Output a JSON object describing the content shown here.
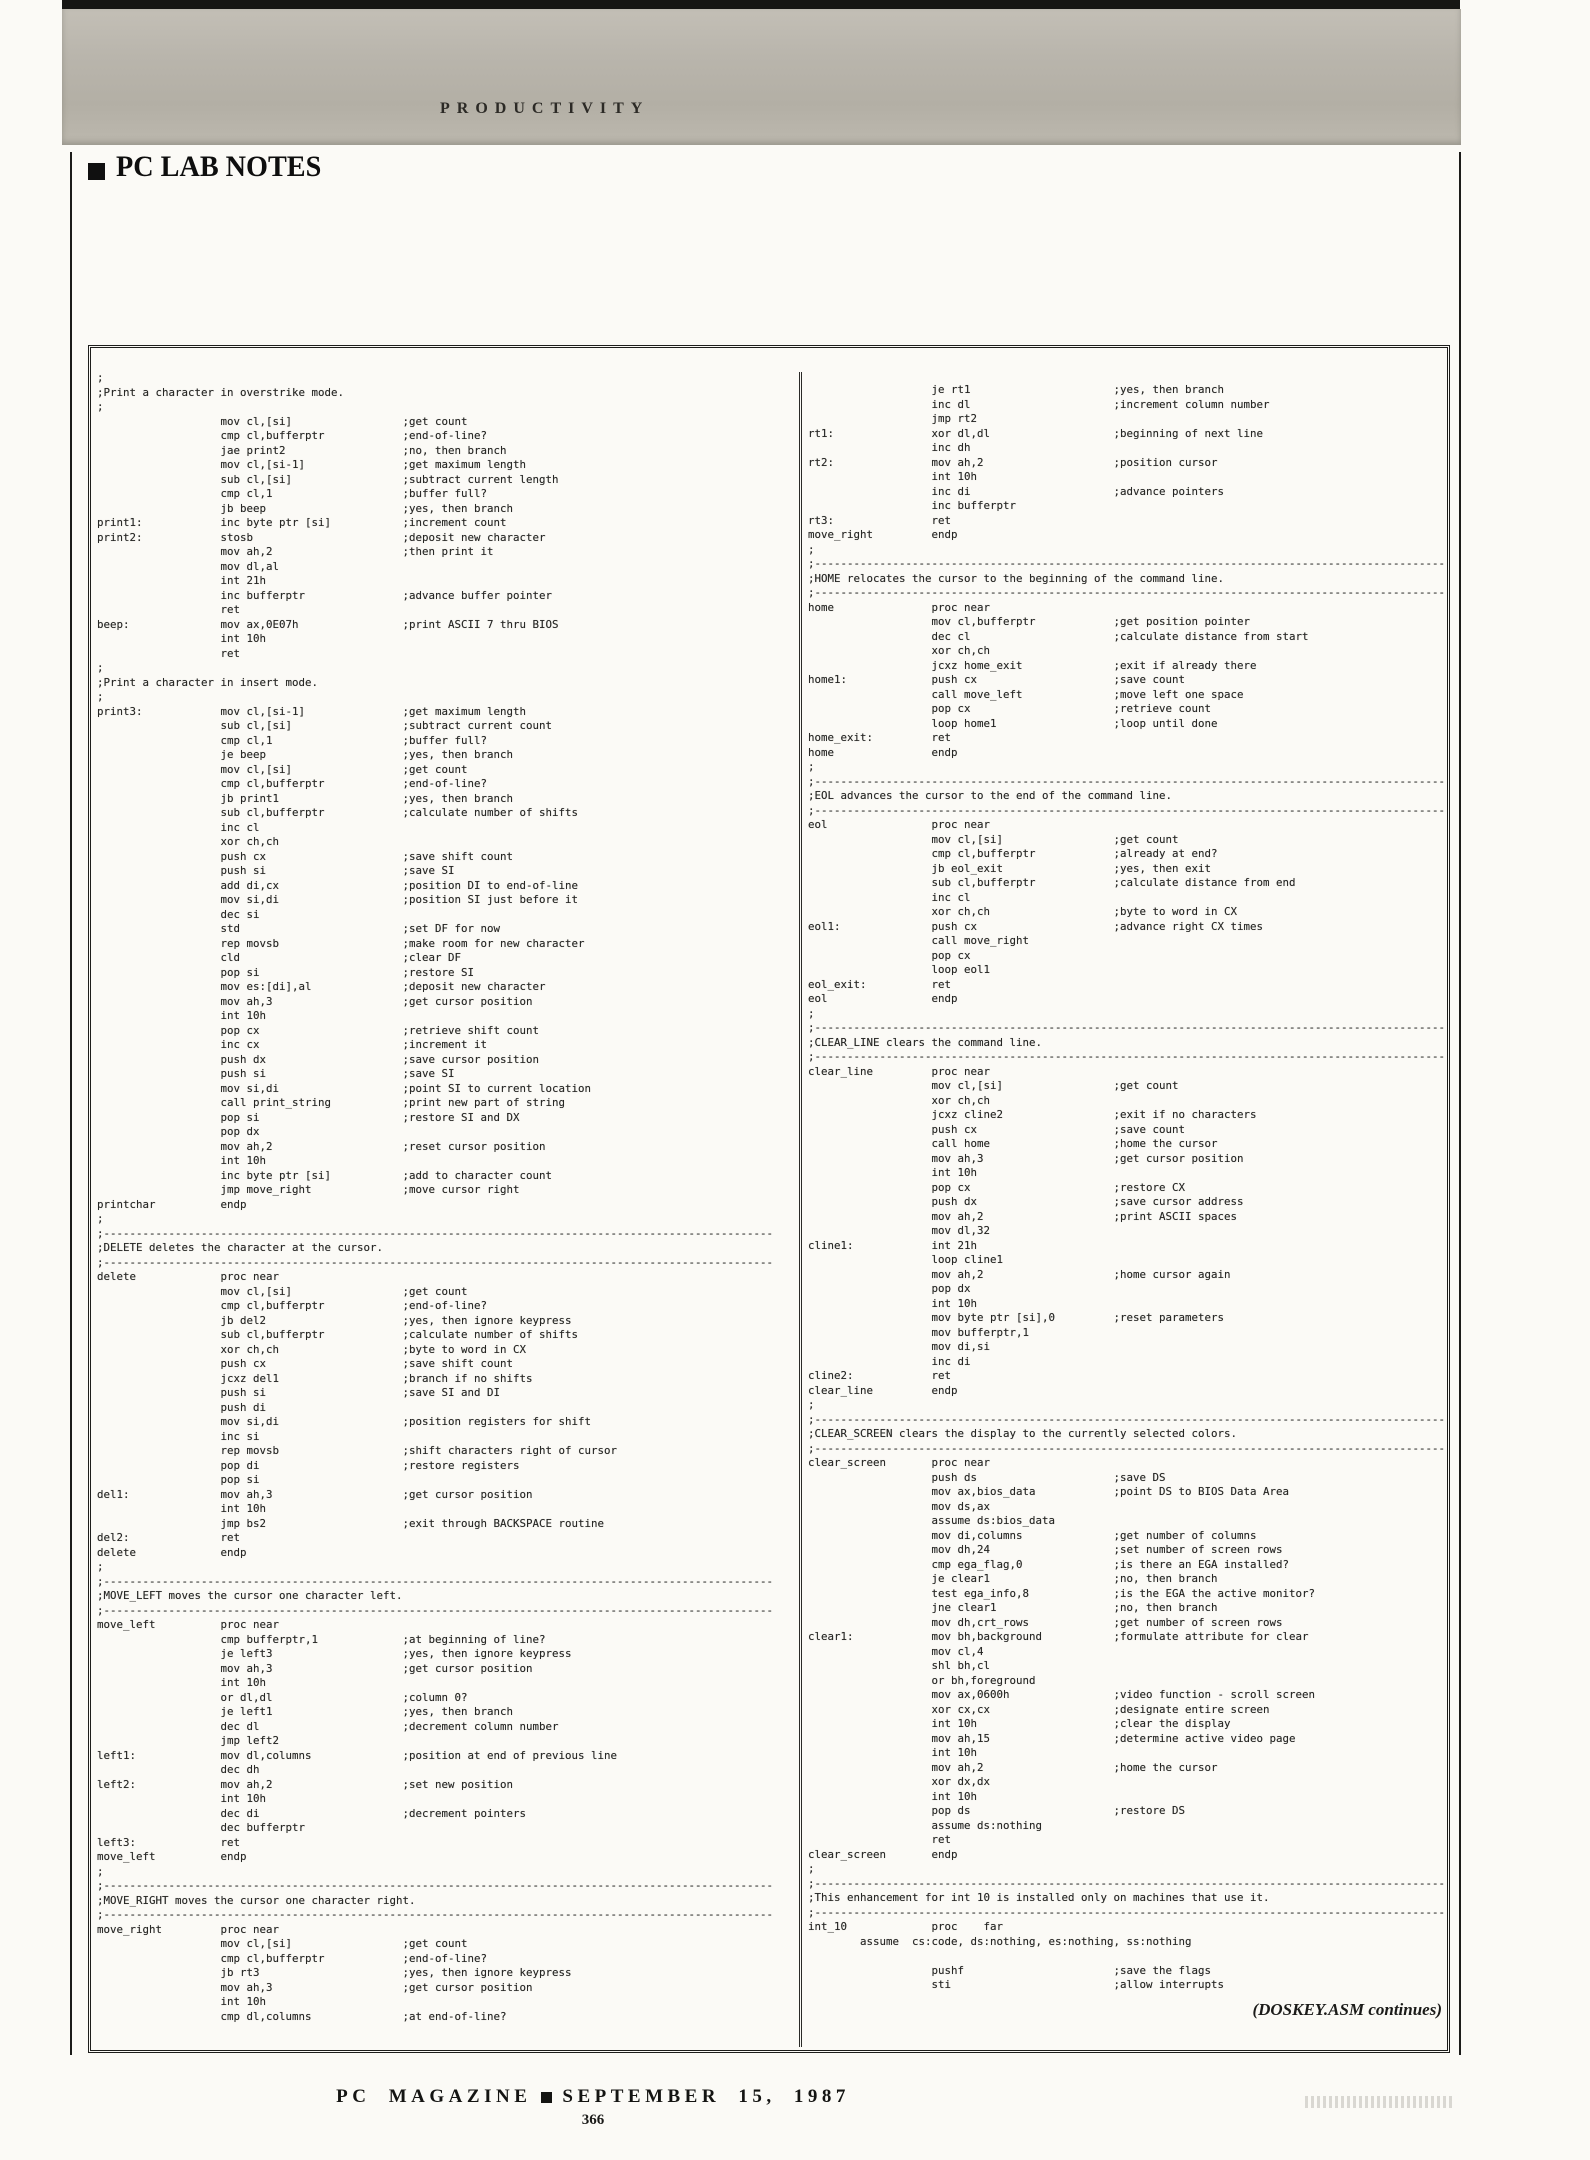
{
  "header": {
    "category_label": "PRODUCTIVITY",
    "section_title": "PC LAB NOTES"
  },
  "listing": {
    "left_lines": [
      ";",
      ";Print a character in overstrike mode.",
      ";",
      [
        "",
        "mov cl,[si]",
        ";get count"
      ],
      [
        "",
        "cmp cl,bufferptr",
        ";end-of-line?"
      ],
      [
        "",
        "jae print2",
        ";no, then branch"
      ],
      [
        "",
        "mov cl,[si-1]",
        ";get maximum length"
      ],
      [
        "",
        "sub cl,[si]",
        ";subtract current length"
      ],
      [
        "",
        "cmp cl,1",
        ";buffer full?"
      ],
      [
        "",
        "jb beep",
        ";yes, then branch"
      ],
      [
        "print1:",
        "inc byte ptr [si]",
        ";increment count"
      ],
      [
        "print2:",
        "stosb",
        ";deposit new character"
      ],
      [
        "",
        "mov ah,2",
        ";then print it"
      ],
      [
        "",
        "mov dl,al",
        ""
      ],
      [
        "",
        "int 21h",
        ""
      ],
      [
        "",
        "inc bufferptr",
        ";advance buffer pointer"
      ],
      [
        "",
        "ret",
        ""
      ],
      [
        "beep:",
        "mov ax,0E07h",
        ";print ASCII 7 thru BIOS"
      ],
      [
        "",
        "int 10h",
        ""
      ],
      [
        "",
        "ret",
        ""
      ],
      ";",
      ";Print a character in insert mode.",
      ";",
      [
        "print3:",
        "mov cl,[si-1]",
        ";get maximum length"
      ],
      [
        "",
        "sub cl,[si]",
        ";subtract current count"
      ],
      [
        "",
        "cmp cl,1",
        ";buffer full?"
      ],
      [
        "",
        "je beep",
        ";yes, then branch"
      ],
      [
        "",
        "mov cl,[si]",
        ";get count"
      ],
      [
        "",
        "cmp cl,bufferptr",
        ";end-of-line?"
      ],
      [
        "",
        "jb print1",
        ";yes, then branch"
      ],
      [
        "",
        "sub cl,bufferptr",
        ";calculate number of shifts"
      ],
      [
        "",
        "inc cl",
        ""
      ],
      [
        "",
        "xor ch,ch",
        ""
      ],
      [
        "",
        "push cx",
        ";save shift count"
      ],
      [
        "",
        "push si",
        ";save SI"
      ],
      [
        "",
        "add di,cx",
        ";position DI to end-of-line"
      ],
      [
        "",
        "mov si,di",
        ";position SI just before it"
      ],
      [
        "",
        "dec si",
        ""
      ],
      [
        "",
        "std",
        ";set DF for now"
      ],
      [
        "",
        "rep movsb",
        ";make room for new character"
      ],
      [
        "",
        "cld",
        ";clear DF"
      ],
      [
        "",
        "pop si",
        ";restore SI"
      ],
      [
        "",
        "mov es:[di],al",
        ";deposit new character"
      ],
      [
        "",
        "mov ah,3",
        ";get cursor position"
      ],
      [
        "",
        "int 10h",
        ""
      ],
      [
        "",
        "pop cx",
        ";retrieve shift count"
      ],
      [
        "",
        "inc cx",
        ";increment it"
      ],
      [
        "",
        "push dx",
        ";save cursor position"
      ],
      [
        "",
        "push si",
        ";save SI"
      ],
      [
        "",
        "mov si,di",
        ";point SI to current location"
      ],
      [
        "",
        "call print_string",
        ";print new part of string"
      ],
      [
        "",
        "pop si",
        ";restore SI and DX"
      ],
      [
        "",
        "pop dx",
        ""
      ],
      [
        "",
        "mov ah,2",
        ";reset cursor position"
      ],
      [
        "",
        "int 10h",
        ""
      ],
      [
        "",
        "inc byte ptr [si]",
        ";add to character count"
      ],
      [
        "",
        "jmp move_right",
        ";move cursor right"
      ],
      [
        "printchar",
        "endp",
        ""
      ],
      ";",
      ";-------------------------------------------------------------------------------------------------------",
      ";DELETE deletes the character at the cursor.",
      ";-------------------------------------------------------------------------------------------------------",
      [
        "delete",
        "proc near",
        ""
      ],
      [
        "",
        "mov cl,[si]",
        ";get count"
      ],
      [
        "",
        "cmp cl,bufferptr",
        ";end-of-line?"
      ],
      [
        "",
        "jb del2",
        ";yes, then ignore keypress"
      ],
      [
        "",
        "sub cl,bufferptr",
        ";calculate number of shifts"
      ],
      [
        "",
        "xor ch,ch",
        ";byte to word in CX"
      ],
      [
        "",
        "push cx",
        ";save shift count"
      ],
      [
        "",
        "jcxz del1",
        ";branch if no shifts"
      ],
      [
        "",
        "push si",
        ";save SI and DI"
      ],
      [
        "",
        "push di",
        ""
      ],
      [
        "",
        "mov si,di",
        ";position registers for shift"
      ],
      [
        "",
        "inc si",
        ""
      ],
      [
        "",
        "rep movsb",
        ";shift characters right of cursor"
      ],
      [
        "",
        "pop di",
        ";restore registers"
      ],
      [
        "",
        "pop si",
        ""
      ],
      [
        "del1:",
        "mov ah,3",
        ";get cursor position"
      ],
      [
        "",
        "int 10h",
        ""
      ],
      [
        "",
        "jmp bs2",
        ";exit through BACKSPACE routine"
      ],
      [
        "del2:",
        "ret",
        ""
      ],
      [
        "delete",
        "endp",
        ""
      ],
      ";",
      ";-------------------------------------------------------------------------------------------------------",
      ";MOVE_LEFT moves the cursor one character left.",
      ";-------------------------------------------------------------------------------------------------------",
      [
        "move_left",
        "proc near",
        ""
      ],
      [
        "",
        "cmp bufferptr,1",
        ";at beginning of line?"
      ],
      [
        "",
        "je left3",
        ";yes, then ignore keypress"
      ],
      [
        "",
        "mov ah,3",
        ";get cursor position"
      ],
      [
        "",
        "int 10h",
        ""
      ],
      [
        "",
        "or dl,dl",
        ";column 0?"
      ],
      [
        "",
        "je left1",
        ";yes, then branch"
      ],
      [
        "",
        "dec dl",
        ";decrement column number"
      ],
      [
        "",
        "jmp left2",
        ""
      ],
      [
        "left1:",
        "mov dl,columns",
        ";position at end of previous line"
      ],
      [
        "",
        "dec dh",
        ""
      ],
      [
        "left2:",
        "mov ah,2",
        ";set new position"
      ],
      [
        "",
        "int 10h",
        ""
      ],
      [
        "",
        "dec di",
        ";decrement pointers"
      ],
      [
        "",
        "dec bufferptr",
        ""
      ],
      [
        "left3:",
        "ret",
        ""
      ],
      [
        "move_left",
        "endp",
        ""
      ],
      ";",
      ";-------------------------------------------------------------------------------------------------------",
      ";MOVE_RIGHT moves the cursor one character right.",
      ";-------------------------------------------------------------------------------------------------------",
      [
        "move_right",
        "proc near",
        ""
      ],
      [
        "",
        "mov cl,[si]",
        ";get count"
      ],
      [
        "",
        "cmp cl,bufferptr",
        ";end-of-line?"
      ],
      [
        "",
        "jb rt3",
        ";yes, then ignore keypress"
      ],
      [
        "",
        "mov ah,3",
        ";get cursor position"
      ],
      [
        "",
        "int 10h",
        ""
      ],
      [
        "",
        "cmp dl,columns",
        ";at end-of-line?"
      ]
    ],
    "right_lines": [
      [
        "",
        "je rt1",
        ";yes, then branch"
      ],
      [
        "",
        "inc dl",
        ";increment column number"
      ],
      [
        "",
        "jmp rt2",
        ""
      ],
      [
        "rt1:",
        "xor dl,dl",
        ";beginning of next line"
      ],
      [
        "",
        "inc dh",
        ""
      ],
      [
        "rt2:",
        "mov ah,2",
        ";position cursor"
      ],
      [
        "",
        "int 10h",
        ""
      ],
      [
        "",
        "inc di",
        ";advance pointers"
      ],
      [
        "",
        "inc bufferptr",
        ""
      ],
      [
        "rt3:",
        "ret",
        ""
      ],
      [
        "move_right",
        "endp",
        ""
      ],
      ";",
      ";-------------------------------------------------------------------------------------------------",
      ";HOME relocates the cursor to the beginning of the command line.",
      ";-------------------------------------------------------------------------------------------------",
      [
        "home",
        "proc near",
        ""
      ],
      [
        "",
        "mov cl,bufferptr",
        ";get position pointer"
      ],
      [
        "",
        "dec cl",
        ";calculate distance from start"
      ],
      [
        "",
        "xor ch,ch",
        ""
      ],
      [
        "",
        "jcxz home_exit",
        ";exit if already there"
      ],
      [
        "home1:",
        "push cx",
        ";save count"
      ],
      [
        "",
        "call move_left",
        ";move left one space"
      ],
      [
        "",
        "pop cx",
        ";retrieve count"
      ],
      [
        "",
        "loop home1",
        ";loop until done"
      ],
      [
        "home_exit:",
        "ret",
        ""
      ],
      [
        "home",
        "endp",
        ""
      ],
      ";",
      ";-------------------------------------------------------------------------------------------------",
      ";EOL advances the cursor to the end of the command line.",
      ";-------------------------------------------------------------------------------------------------",
      [
        "eol",
        "proc near",
        ""
      ],
      [
        "",
        "mov cl,[si]",
        ";get count"
      ],
      [
        "",
        "cmp cl,bufferptr",
        ";already at end?"
      ],
      [
        "",
        "jb eol_exit",
        ";yes, then exit"
      ],
      [
        "",
        "sub cl,bufferptr",
        ";calculate distance from end"
      ],
      [
        "",
        "inc cl",
        ""
      ],
      [
        "",
        "xor ch,ch",
        ";byte to word in CX"
      ],
      [
        "eol1:",
        "push cx",
        ";advance right CX times"
      ],
      [
        "",
        "call move_right",
        ""
      ],
      [
        "",
        "pop cx",
        ""
      ],
      [
        "",
        "loop eol1",
        ""
      ],
      [
        "eol_exit:",
        "ret",
        ""
      ],
      [
        "eol",
        "endp",
        ""
      ],
      ";",
      ";-------------------------------------------------------------------------------------------------",
      ";CLEAR_LINE clears the command line.",
      ";-------------------------------------------------------------------------------------------------",
      [
        "clear_line",
        "proc near",
        ""
      ],
      [
        "",
        "mov cl,[si]",
        ";get count"
      ],
      [
        "",
        "xor ch,ch",
        ""
      ],
      [
        "",
        "jcxz cline2",
        ";exit if no characters"
      ],
      [
        "",
        "push cx",
        ";save count"
      ],
      [
        "",
        "call home",
        ";home the cursor"
      ],
      [
        "",
        "mov ah,3",
        ";get cursor position"
      ],
      [
        "",
        "int 10h",
        ""
      ],
      [
        "",
        "pop cx",
        ";restore CX"
      ],
      [
        "",
        "push dx",
        ";save cursor address"
      ],
      [
        "",
        "mov ah,2",
        ";print ASCII spaces"
      ],
      [
        "",
        "mov dl,32",
        ""
      ],
      [
        "cline1:",
        "int 21h",
        ""
      ],
      [
        "",
        "loop cline1",
        ""
      ],
      [
        "",
        "mov ah,2",
        ";home cursor again"
      ],
      [
        "",
        "pop dx",
        ""
      ],
      [
        "",
        "int 10h",
        ""
      ],
      [
        "",
        "mov byte ptr [si],0",
        ";reset parameters"
      ],
      [
        "",
        "mov bufferptr,1",
        ""
      ],
      [
        "",
        "mov di,si",
        ""
      ],
      [
        "",
        "inc di",
        ""
      ],
      [
        "cline2:",
        "ret",
        ""
      ],
      [
        "clear_line",
        "endp",
        ""
      ],
      ";",
      ";-------------------------------------------------------------------------------------------------",
      ";CLEAR_SCREEN clears the display to the currently selected colors.",
      ";-------------------------------------------------------------------------------------------------",
      [
        "clear_screen",
        "proc near",
        ""
      ],
      [
        "",
        "push ds",
        ";save DS"
      ],
      [
        "",
        "mov ax,bios_data",
        ";point DS to BIOS Data Area"
      ],
      [
        "",
        "mov ds,ax",
        ""
      ],
      [
        "",
        "assume ds:bios_data",
        ""
      ],
      [
        "",
        "mov di,columns",
        ";get number of columns"
      ],
      [
        "",
        "mov dh,24",
        ";set number of screen rows"
      ],
      [
        "",
        "cmp ega_flag,0",
        ";is there an EGA installed?"
      ],
      [
        "",
        "je clear1",
        ";no, then branch"
      ],
      [
        "",
        "test ega_info,8",
        ";is the EGA the active monitor?"
      ],
      [
        "",
        "jne clear1",
        ";no, then branch"
      ],
      [
        "",
        "mov dh,crt_rows",
        ";get number of screen rows"
      ],
      [
        "clear1:",
        "mov bh,background",
        ";formulate attribute for clear"
      ],
      [
        "",
        "mov cl,4",
        ""
      ],
      [
        "",
        "shl bh,cl",
        ""
      ],
      [
        "",
        "or bh,foreground",
        ""
      ],
      [
        "",
        "mov ax,0600h",
        ";video function - scroll screen"
      ],
      [
        "",
        "xor cx,cx",
        ";designate entire screen"
      ],
      [
        "",
        "int 10h",
        ";clear the display"
      ],
      [
        "",
        "mov ah,15",
        ";determine active video page"
      ],
      [
        "",
        "int 10h",
        ""
      ],
      [
        "",
        "mov ah,2",
        ";home the cursor"
      ],
      [
        "",
        "xor dx,dx",
        ""
      ],
      [
        "",
        "int 10h",
        ""
      ],
      [
        "",
        "pop ds",
        ";restore DS"
      ],
      [
        "",
        "assume ds:nothing",
        ""
      ],
      [
        "",
        "ret",
        ""
      ],
      [
        "clear_screen",
        "endp",
        ""
      ],
      ";",
      ";-------------------------------------------------------------------------------------------------",
      ";This enhancement for int 10 is installed only on machines that use it.",
      ";-------------------------------------------------------------------------------------------------",
      [
        "int_10",
        "proc    far",
        ""
      ],
      "        assume  cs:code, ds:nothing, es:nothing, ss:nothing",
      "",
      [
        "",
        "pushf",
        ";save the flags"
      ],
      [
        "",
        "sti",
        ";allow interrupts"
      ]
    ],
    "continues_note": "(DOSKEY.ASM continues)"
  },
  "footer": {
    "magazine": "PC  MAGAZINE",
    "date": "SEPTEMBER 15, 1987",
    "page_number": "366"
  }
}
